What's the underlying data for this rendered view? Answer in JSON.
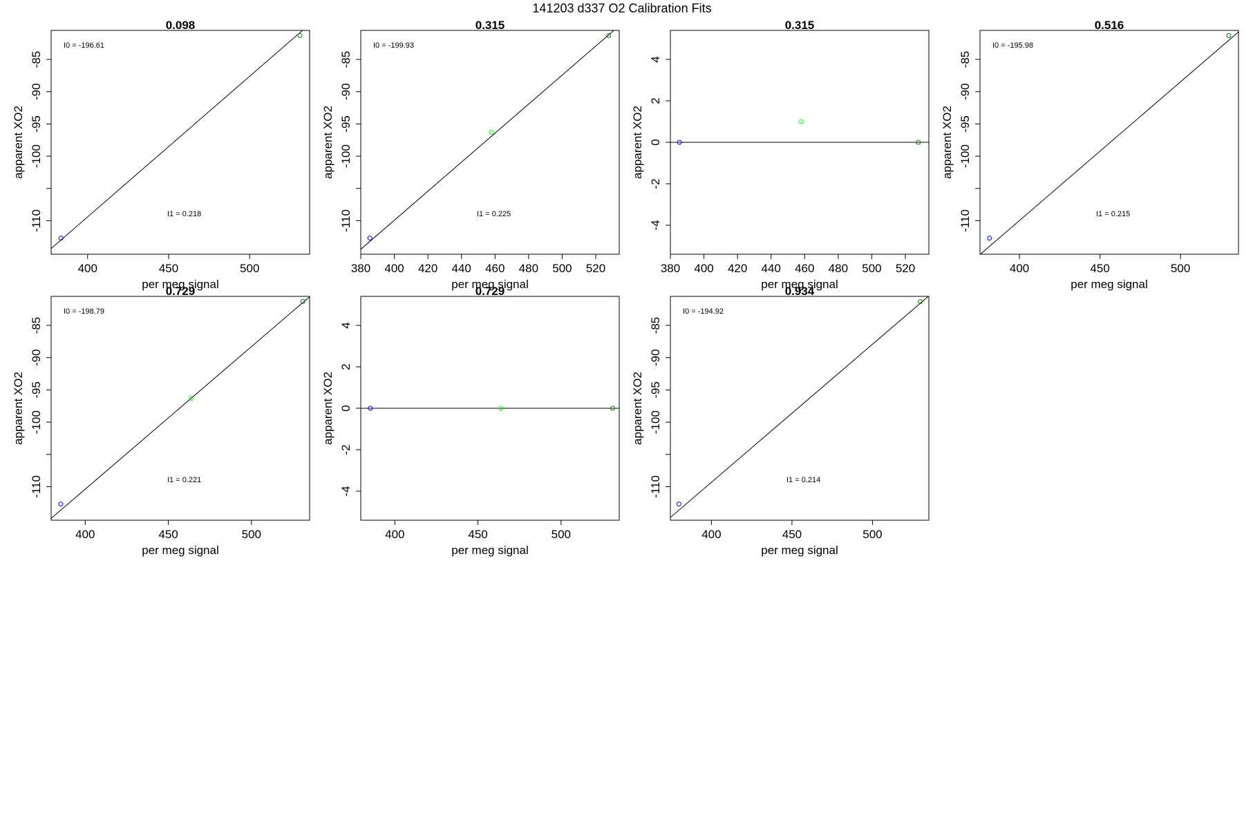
{
  "page": {
    "title": "141203   d337   O2 Calibration Fits"
  },
  "colors": {
    "frame": "#000000",
    "fit_line": "#000000",
    "point_low": "#0000ff",
    "point_mid": "#00ff00",
    "point_high": "#008000"
  },
  "chart_data": [
    {
      "type": "scatter",
      "title": "0.098",
      "xlabel": "per meg signal",
      "ylabel": "apparent XO2",
      "xlim": [
        377.5,
        537
      ],
      "ylim": [
        -115.2,
        -80.5
      ],
      "xticks": [
        400,
        450,
        500
      ],
      "yticks": [
        -85,
        -90,
        -95,
        -100,
        -105,
        -110
      ],
      "ytick_labels": [
        "-85",
        "-90",
        "-95",
        "-100",
        "",
        "-110"
      ],
      "annotations": {
        "I0": "I0 =  -196.61",
        "I1": "I1 =  0.218"
      },
      "points": [
        {
          "x": 383.6,
          "y": -112.7,
          "color": "#0000ff"
        },
        {
          "x": 531.0,
          "y": -81.3,
          "color": "#008000"
        }
      ],
      "fit_line": {
        "intercept": -196.61,
        "slope": 0.218
      }
    },
    {
      "type": "scatter",
      "title": "0.315",
      "xlabel": "per meg signal",
      "ylabel": "apparent XO2",
      "xlim": [
        380,
        534
      ],
      "ylim": [
        -115.2,
        -80.5
      ],
      "xticks": [
        380,
        400,
        420,
        440,
        460,
        480,
        500,
        520
      ],
      "yticks": [
        -85,
        -90,
        -95,
        -100,
        -105,
        -110
      ],
      "ytick_labels": [
        "-85",
        "-90",
        "-95",
        "-100",
        "",
        "-110"
      ],
      "annotations": {
        "I0": "I0 =  -199.93",
        "I1": "I1 =  0.225"
      },
      "points": [
        {
          "x": 385.4,
          "y": -112.7,
          "color": "#0000ff"
        },
        {
          "x": 457.9,
          "y": -96.3,
          "color": "#00ff00"
        },
        {
          "x": 527.7,
          "y": -81.3,
          "color": "#008000"
        }
      ],
      "fit_line": {
        "intercept": -199.93,
        "slope": 0.225
      }
    },
    {
      "type": "scatter",
      "title": "0.315",
      "xlabel": "per meg signal",
      "ylabel": "apparent XO2",
      "xlim": [
        380,
        534
      ],
      "ylim": [
        -5.4,
        5.4
      ],
      "xticks": [
        380,
        400,
        420,
        440,
        460,
        480,
        500,
        520
      ],
      "yticks": [
        4,
        2,
        0,
        -2,
        -4
      ],
      "ytick_labels": [
        "4",
        "2",
        "0",
        "-2",
        "-4"
      ],
      "annotations": {},
      "points": [
        {
          "x": 385.4,
          "y": 0,
          "color": "#0000ff"
        },
        {
          "x": 457.9,
          "y": 1.0,
          "color": "#00ff00"
        },
        {
          "x": 527.7,
          "y": 0,
          "color": "#008000"
        }
      ],
      "fit_line": {
        "intercept": 0,
        "slope": 0
      }
    },
    {
      "type": "scatter",
      "title": "0.516",
      "xlabel": "per meg signal",
      "ylabel": "apparent XO2",
      "xlim": [
        375.5,
        536
      ],
      "ylim": [
        -115.2,
        -80.5
      ],
      "xticks": [
        400,
        450,
        500
      ],
      "yticks": [
        -85,
        -90,
        -95,
        -100,
        -105,
        -110
      ],
      "ytick_labels": [
        "-85",
        "-90",
        "-95",
        "-100",
        "",
        "-110"
      ],
      "annotations": {
        "I0": "I0 =  -195.98",
        "I1": "I1 =  0.215"
      },
      "points": [
        {
          "x": 381.4,
          "y": -112.7,
          "color": "#0000ff"
        },
        {
          "x": 530.0,
          "y": -81.3,
          "color": "#008000"
        }
      ],
      "fit_line": {
        "intercept": -195.98,
        "slope": 0.215
      }
    },
    {
      "type": "scatter",
      "title": "0.729",
      "xlabel": "per meg signal",
      "ylabel": "apparent XO2",
      "xlim": [
        379.5,
        535
      ],
      "ylim": [
        -115.2,
        -80.5
      ],
      "xticks": [
        400,
        450,
        500
      ],
      "yticks": [
        -85,
        -90,
        -95,
        -100,
        -105,
        -110
      ],
      "ytick_labels": [
        "-85",
        "-90",
        "-95",
        "-100",
        "",
        "-110"
      ],
      "annotations": {
        "I0": "I0 =  -198.79",
        "I1": "I1 =  0.221"
      },
      "points": [
        {
          "x": 385.3,
          "y": -112.7,
          "color": "#0000ff"
        },
        {
          "x": 463.8,
          "y": -96.3,
          "color": "#00ff00"
        },
        {
          "x": 531.0,
          "y": -81.3,
          "color": "#008000"
        }
      ],
      "fit_line": {
        "intercept": -198.79,
        "slope": 0.221
      }
    },
    {
      "type": "scatter",
      "title": "0.729",
      "xlabel": "per meg signal",
      "ylabel": "apparent XO2",
      "xlim": [
        379.5,
        535
      ],
      "ylim": [
        -5.4,
        5.4
      ],
      "xticks": [
        400,
        450,
        500
      ],
      "yticks": [
        4,
        2,
        0,
        -2,
        -4
      ],
      "ytick_labels": [
        "4",
        "2",
        "0",
        "-2",
        "-4"
      ],
      "annotations": {},
      "points": [
        {
          "x": 385.3,
          "y": 0,
          "color": "#0000ff"
        },
        {
          "x": 463.8,
          "y": 0,
          "color": "#00ff00"
        },
        {
          "x": 531.0,
          "y": 0,
          "color": "#008000"
        }
      ],
      "fit_line": {
        "intercept": 0,
        "slope": 0
      }
    },
    {
      "type": "scatter",
      "title": "0.934",
      "xlabel": "per meg signal",
      "ylabel": "apparent XO2",
      "xlim": [
        374.5,
        535
      ],
      "ylim": [
        -115.2,
        -80.5
      ],
      "xticks": [
        400,
        450,
        500
      ],
      "yticks": [
        -85,
        -90,
        -95,
        -100,
        -105,
        -110
      ],
      "ytick_labels": [
        "-85",
        "-90",
        "-95",
        "-100",
        "",
        "-110"
      ],
      "annotations": {
        "I0": "I0 =  -194.92",
        "I1": "I1 =  0.214"
      },
      "points": [
        {
          "x": 379.8,
          "y": -112.7,
          "color": "#0000ff"
        },
        {
          "x": 529.7,
          "y": -81.3,
          "color": "#008000"
        }
      ],
      "fit_line": {
        "intercept": -194.92,
        "slope": 0.214
      }
    }
  ]
}
